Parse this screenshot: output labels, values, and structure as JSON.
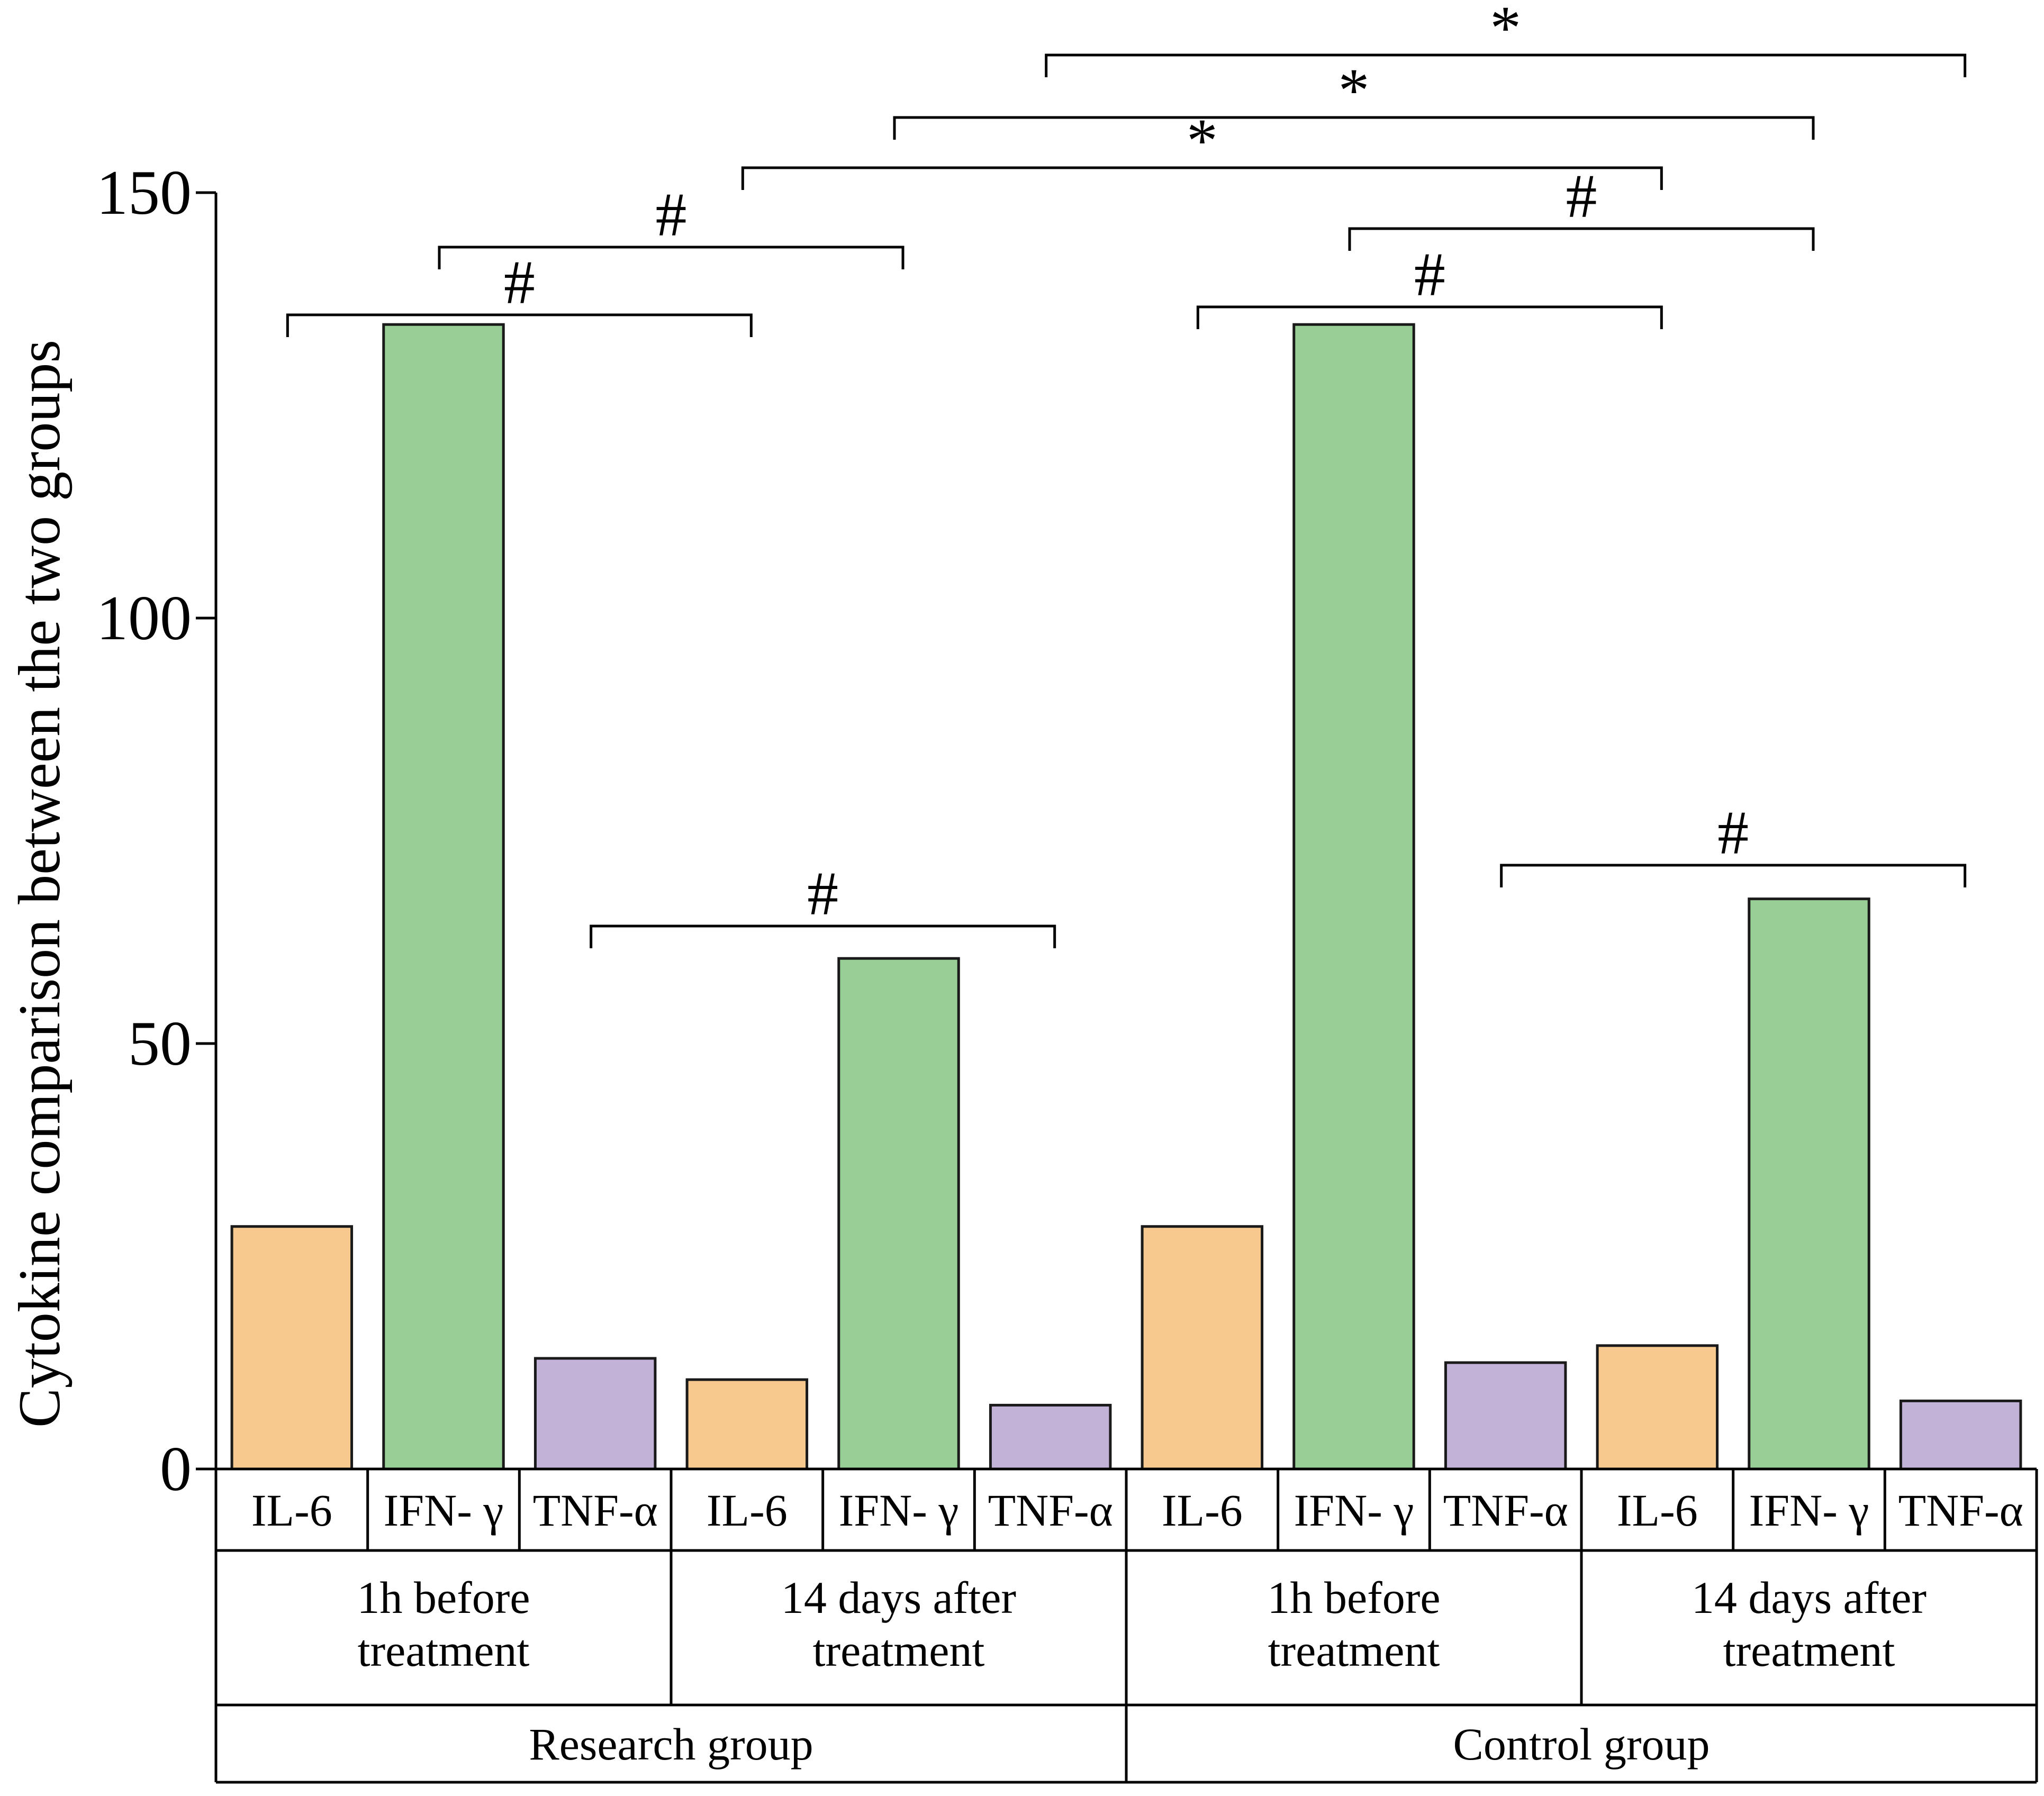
{
  "chart_data": {
    "type": "bar",
    "ylabel": "Cytokine comparison between the two groups",
    "ylim": [
      0,
      150
    ],
    "yticks": [
      0,
      50,
      100,
      150
    ],
    "categories": [
      "IL-6",
      "IFN- γ",
      "TNF-α",
      "IL-6",
      "IFN- γ",
      "TNF-α",
      "IL-6",
      "IFN- γ",
      "TNF-α",
      "IL-6",
      "IFN- γ",
      "TNF-α"
    ],
    "values": [
      28.5,
      134.5,
      13,
      10.5,
      60,
      7.5,
      28.5,
      134.5,
      12.5,
      14.5,
      67,
      8
    ],
    "bar_kinds": [
      "IL-6",
      "IFN-γ",
      "TNF-α",
      "IL-6",
      "IFN-γ",
      "TNF-α",
      "IL-6",
      "IFN-γ",
      "TNF-α",
      "IL-6",
      "IFN-γ",
      "TNF-α"
    ],
    "colors": {
      "IL-6": "#f8c98e",
      "IFN-γ": "#98cf97",
      "TNF-α": "#c3b2d7"
    },
    "timepoints": [
      {
        "line1": "1h before",
        "line2": "treatment"
      },
      {
        "line1": "14 days after",
        "line2": "treatment"
      },
      {
        "line1": "1h before",
        "line2": "treatment"
      },
      {
        "line1": "14 days after",
        "line2": "treatment"
      }
    ],
    "groups": [
      "Research group",
      "Control group"
    ],
    "significance": [
      {
        "from": 0,
        "to": 3,
        "label": "#"
      },
      {
        "from": 1,
        "to": 4,
        "label": "#"
      },
      {
        "from": 2,
        "to": 5,
        "label": "#"
      },
      {
        "from": 6,
        "to": 9,
        "label": "#"
      },
      {
        "from": 7,
        "to": 10,
        "label": "#"
      },
      {
        "from": 8,
        "to": 11,
        "label": "#"
      },
      {
        "from": 3,
        "to": 9,
        "label": "*"
      },
      {
        "from": 4,
        "to": 10,
        "label": "*"
      },
      {
        "from": 5,
        "to": 11,
        "label": "*"
      }
    ]
  }
}
